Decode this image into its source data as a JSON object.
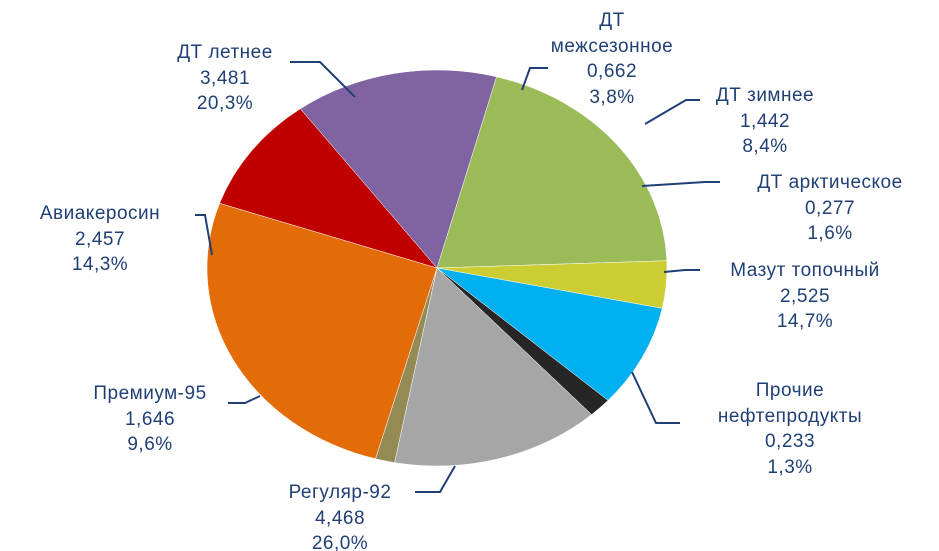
{
  "chart_data": {
    "type": "pie",
    "categories": [
      "ДТ летнее",
      "ДТ межсезонное",
      "ДТ зимнее",
      "ДТ арктическое",
      "Мазут топочный",
      "Прочие нефтепродукты",
      "Регуляр-92",
      "Премиум-95",
      "Авиакеросин"
    ],
    "values": [
      3.481,
      0.662,
      1.442,
      0.277,
      2.525,
      0.233,
      4.468,
      1.646,
      2.457
    ],
    "value_labels": [
      "3,481",
      "0,662",
      "1,442",
      "0,277",
      "2,525",
      "0,233",
      "4,468",
      "1,646",
      "2,457"
    ],
    "percentages": [
      20.3,
      3.8,
      8.4,
      1.6,
      14.7,
      1.3,
      26.0,
      9.6,
      14.3
    ],
    "percentage_labels": [
      "20,3%",
      "3,8%",
      "8,4%",
      "1,6%",
      "14,7%",
      "1,3%",
      "26,0%",
      "9,6%",
      "14,3%"
    ],
    "colors": [
      "#9bbb59",
      "#cccc33",
      "#00b0f0",
      "#262626",
      "#a6a6a6",
      "#948a54",
      "#e36c09",
      "#c00000",
      "#8064a2"
    ]
  }
}
